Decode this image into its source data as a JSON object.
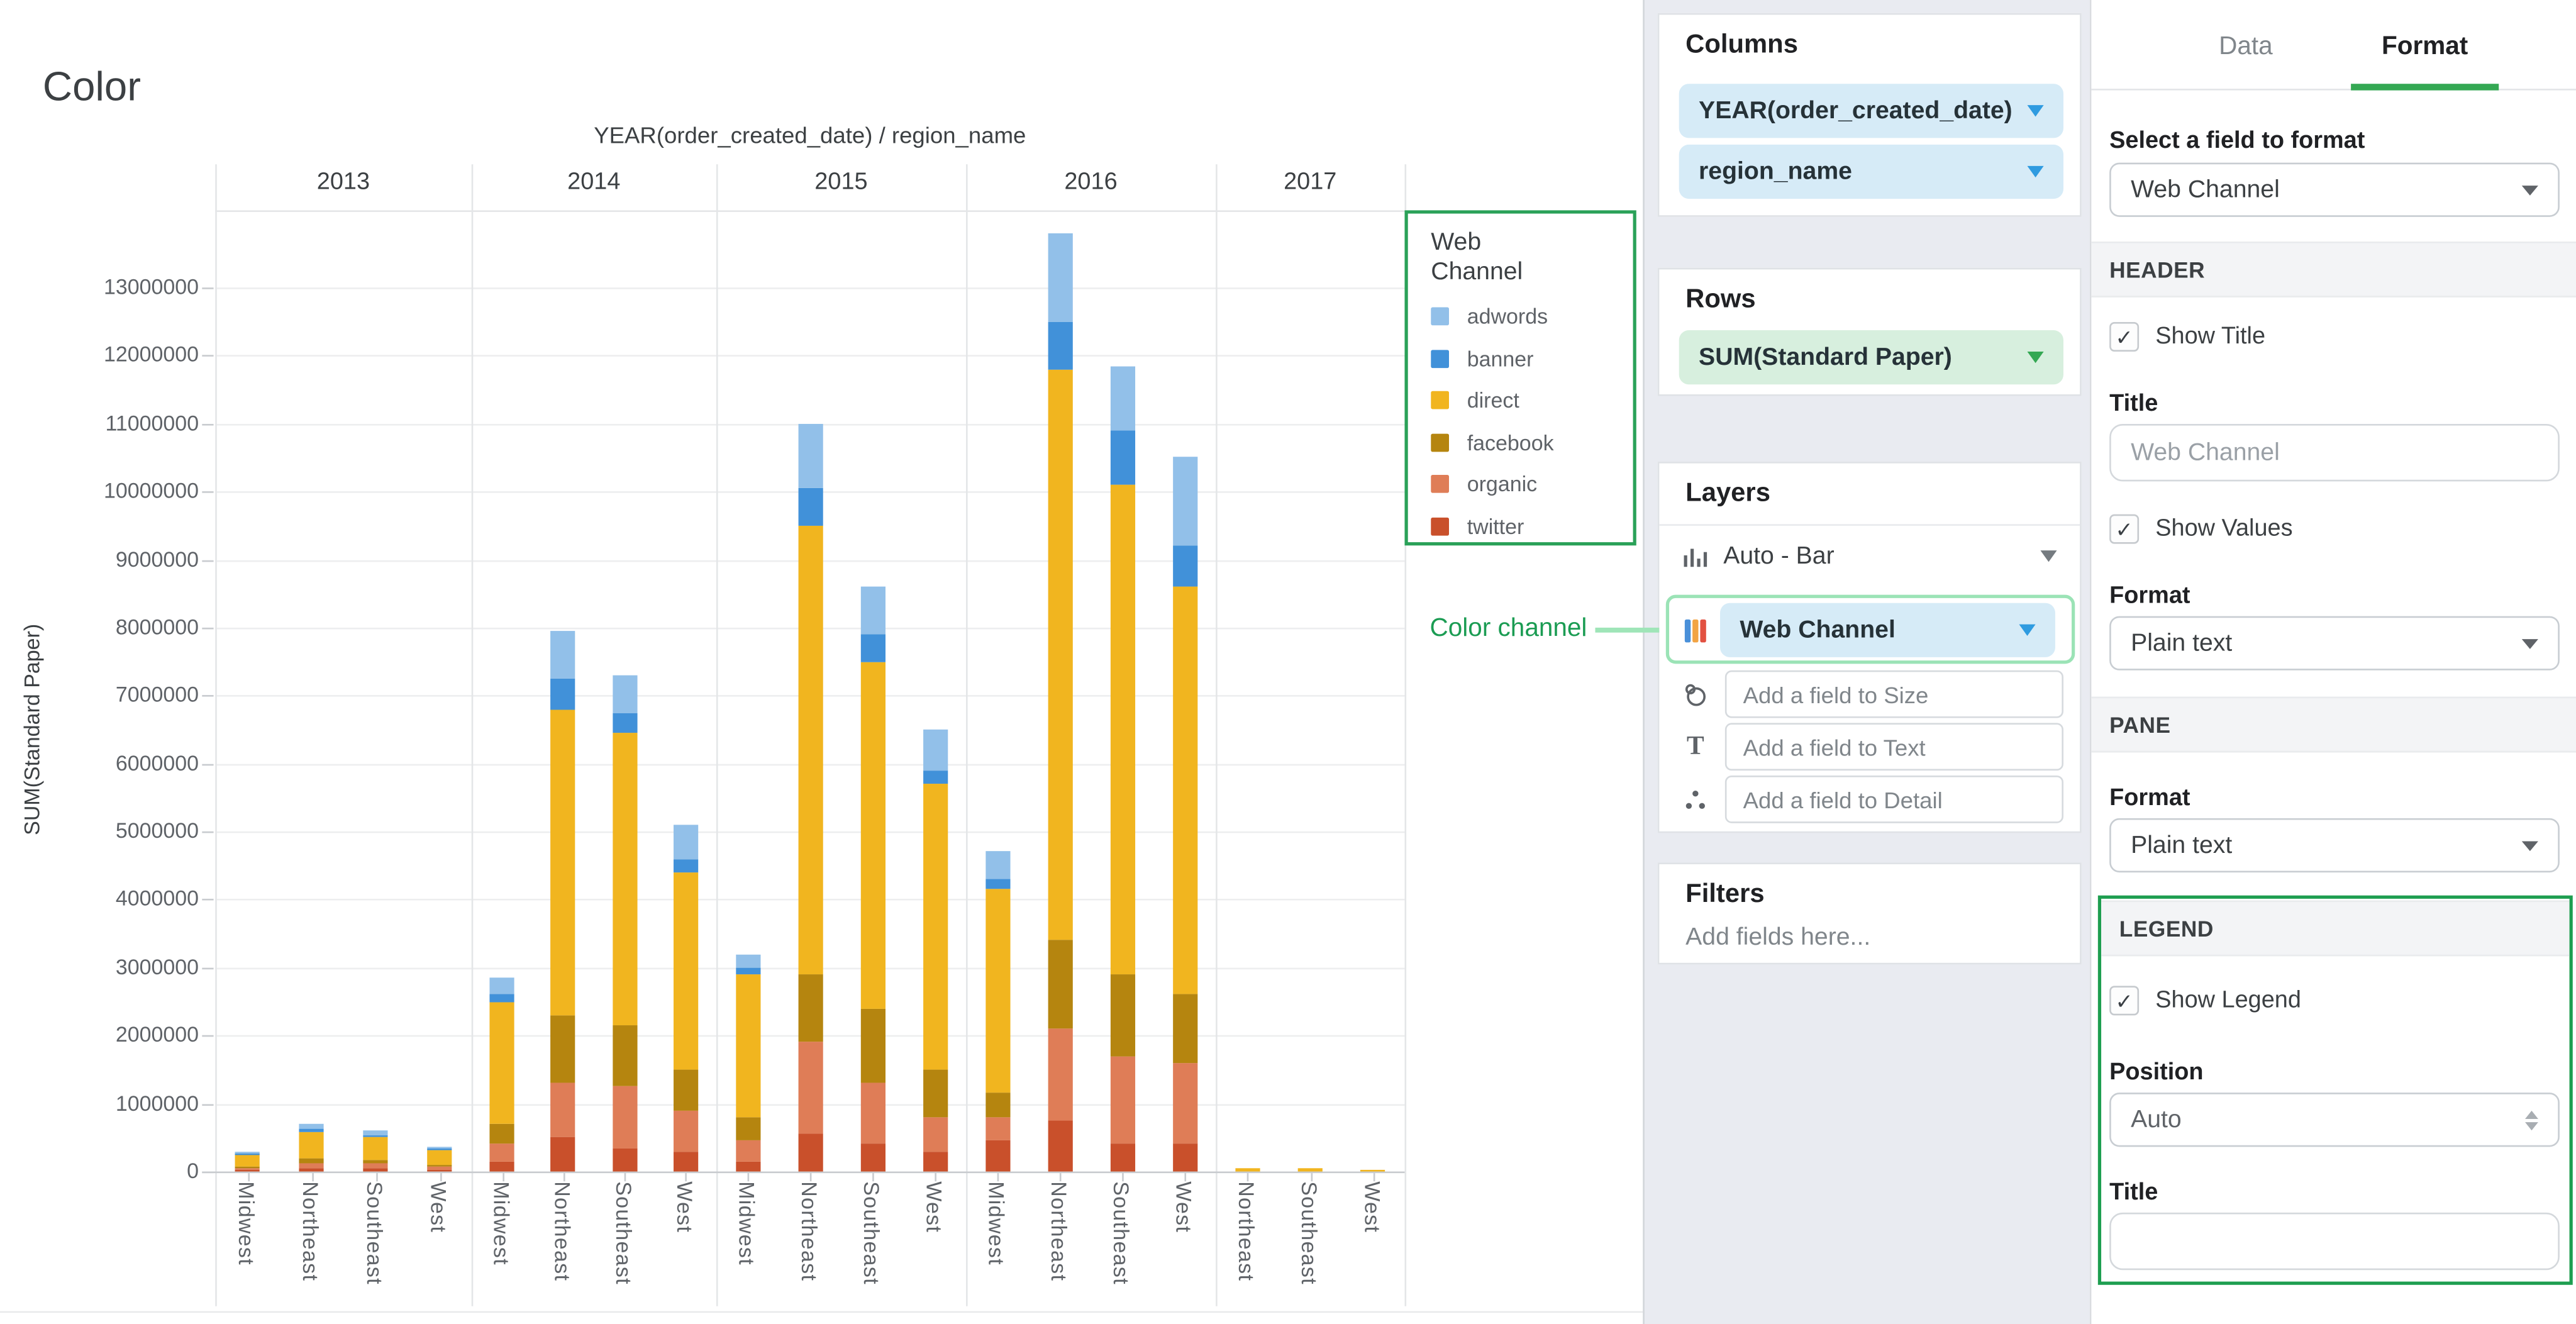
{
  "chart": {
    "title": "Color",
    "legend": {
      "title": "Web Channel",
      "items": [
        "adwords",
        "banner",
        "direct",
        "facebook",
        "organic",
        "twitter"
      ]
    }
  },
  "chart_data": {
    "type": "bar",
    "stacked": true,
    "title": "YEAR(order_created_date) / region_name",
    "ylabel": "SUM(Standard Paper)",
    "ylim": [
      0,
      13800000
    ],
    "yticks": [
      0,
      1000000,
      2000000,
      3000000,
      4000000,
      5000000,
      6000000,
      7000000,
      8000000,
      9000000,
      10000000,
      11000000,
      12000000,
      13000000
    ],
    "grid": true,
    "legend_position": "right",
    "groups": [
      {
        "year": "2013",
        "categories": [
          "Midwest",
          "Northeast",
          "Southeast",
          "West"
        ]
      },
      {
        "year": "2014",
        "categories": [
          "Midwest",
          "Northeast",
          "Southeast",
          "West"
        ]
      },
      {
        "year": "2015",
        "categories": [
          "Midwest",
          "Northeast",
          "Southeast",
          "West"
        ]
      },
      {
        "year": "2016",
        "categories": [
          "Midwest",
          "Northeast",
          "Southeast",
          "West"
        ]
      },
      {
        "year": "2017",
        "categories": [
          "Northeast",
          "Southeast",
          "West"
        ]
      }
    ],
    "stack_order_bottom_to_top": [
      "twitter",
      "organic",
      "facebook",
      "direct",
      "banner",
      "adwords"
    ],
    "series": [
      {
        "name": "adwords",
        "color": "#92C0E9",
        "values": [
          30000,
          80000,
          65000,
          40000,
          250000,
          700000,
          550000,
          500000,
          200000,
          950000,
          700000,
          600000,
          400000,
          1300000,
          950000,
          1300000,
          0,
          0,
          0
        ]
      },
      {
        "name": "banner",
        "color": "#4191D9",
        "values": [
          15000,
          30000,
          25000,
          15000,
          100000,
          450000,
          300000,
          200000,
          100000,
          550000,
          400000,
          200000,
          150000,
          700000,
          800000,
          600000,
          0,
          0,
          0
        ]
      },
      {
        "name": "direct",
        "color": "#F1B51F",
        "values": [
          180000,
          400000,
          340000,
          220000,
          1800000,
          4500000,
          4300000,
          2900000,
          2100000,
          6600000,
          5100000,
          4200000,
          3000000,
          8400000,
          7200000,
          6000000,
          40000,
          60000,
          20000
        ]
      },
      {
        "name": "facebook",
        "color": "#B5850F",
        "values": [
          25000,
          60000,
          55000,
          30000,
          300000,
          1000000,
          900000,
          600000,
          350000,
          1000000,
          1100000,
          700000,
          350000,
          1300000,
          1200000,
          1000000,
          0,
          0,
          0
        ]
      },
      {
        "name": "organic",
        "color": "#DF7D57",
        "values": [
          30000,
          80000,
          70000,
          40000,
          250000,
          800000,
          900000,
          600000,
          300000,
          1350000,
          900000,
          500000,
          350000,
          1350000,
          1300000,
          1200000,
          0,
          0,
          0
        ]
      },
      {
        "name": "twitter",
        "color": "#C9502B",
        "values": [
          20000,
          50000,
          45000,
          25000,
          150000,
          500000,
          350000,
          300000,
          150000,
          550000,
          400000,
          300000,
          450000,
          750000,
          400000,
          400000,
          0,
          0,
          0
        ]
      }
    ]
  },
  "annotation": {
    "label": "Color channel"
  },
  "fields_panel": {
    "columns": {
      "title": "Columns",
      "pills": [
        "YEAR(order_created_date)",
        "region_name"
      ]
    },
    "rows": {
      "title": "Rows",
      "pills": [
        "SUM(Standard Paper)"
      ]
    },
    "layers": {
      "title": "Layers",
      "chart_type": "Auto - Bar",
      "color_field": "Web Channel",
      "size_placeholder": "Add a field to Size",
      "text_placeholder": "Add a field to Text",
      "detail_placeholder": "Add a field to Detail"
    },
    "filters": {
      "title": "Filters",
      "placeholder": "Add fields here..."
    }
  },
  "format_panel": {
    "tabs": {
      "data": "Data",
      "format": "Format"
    },
    "select_field_label": "Select a field to format",
    "selected_field": "Web Channel",
    "header_section": {
      "title": "HEADER",
      "show_title_label": "Show Title",
      "show_title_checked": true,
      "title_label": "Title",
      "title_placeholder": "Web Channel",
      "show_values_label": "Show Values",
      "show_values_checked": true,
      "format_label": "Format",
      "format_value": "Plain text"
    },
    "pane_section": {
      "title": "PANE",
      "format_label": "Format",
      "format_value": "Plain text"
    },
    "legend_section": {
      "title": "LEGEND",
      "show_legend_label": "Show Legend",
      "show_legend_checked": true,
      "position_label": "Position",
      "position_value": "Auto",
      "title_label": "Title",
      "title_value": ""
    }
  },
  "colors": {
    "accent_green": "#1E9E50",
    "legend_outline_green": "#2AA158",
    "highlight_green": "#9BE3B6",
    "tab_underline_green": "#34A853",
    "pill_blue_bg": "#D6EBF7",
    "pill_green_bg": "#D7EFDE"
  }
}
